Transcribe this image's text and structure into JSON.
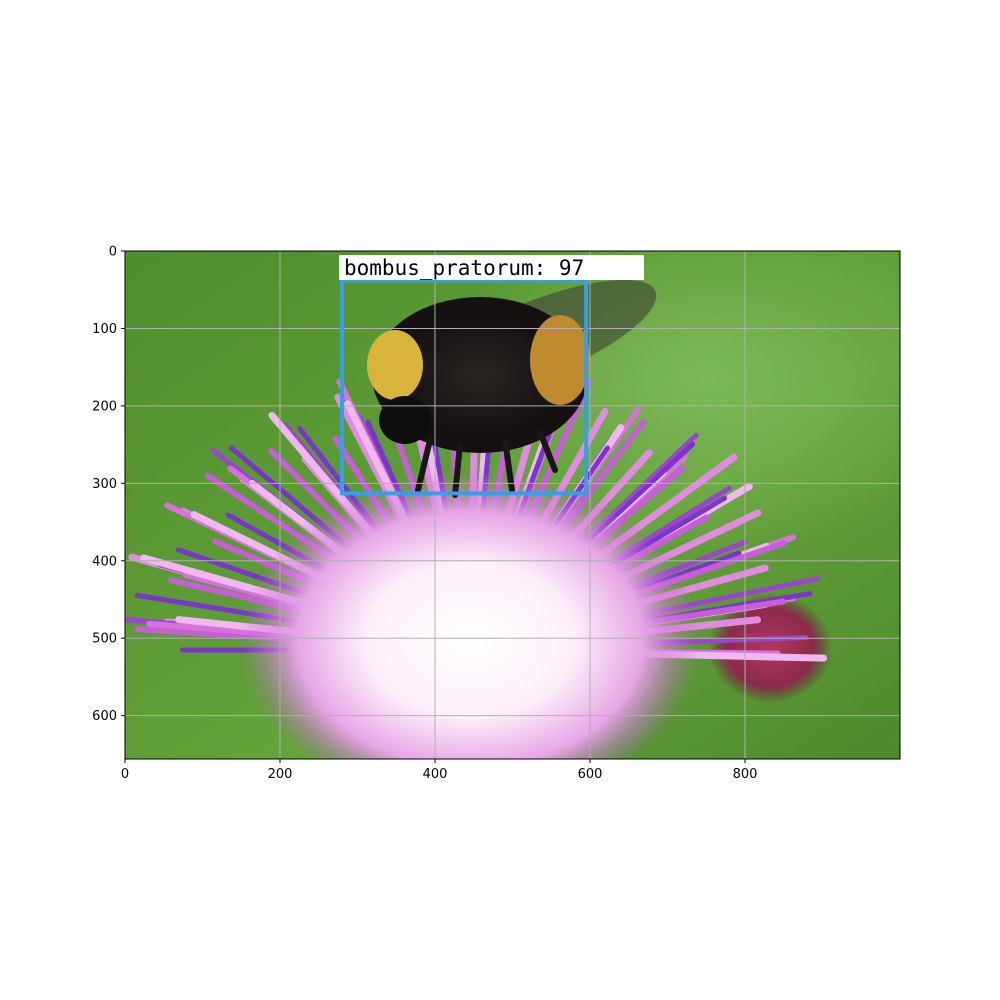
{
  "image": {
    "x_range": [
      0,
      1000
    ],
    "y_range": [
      0,
      656
    ],
    "subject": "bumblebee on purple thistle flower",
    "background_color": "#5a9a35"
  },
  "axes": {
    "x_ticks": [
      "0",
      "200",
      "400",
      "600",
      "800"
    ],
    "x_tick_values": [
      0,
      200,
      400,
      600,
      800
    ],
    "y_ticks": [
      "0",
      "100",
      "200",
      "300",
      "400",
      "500",
      "600"
    ],
    "y_tick_values": [
      0,
      100,
      200,
      300,
      400,
      500,
      600
    ],
    "grid": true
  },
  "detection": {
    "label": "bombus_pratorum: 97",
    "box": {
      "x_min": 280,
      "y_min": 38,
      "x_max": 595,
      "y_max": 313
    },
    "box_color": "#35a0e6"
  }
}
